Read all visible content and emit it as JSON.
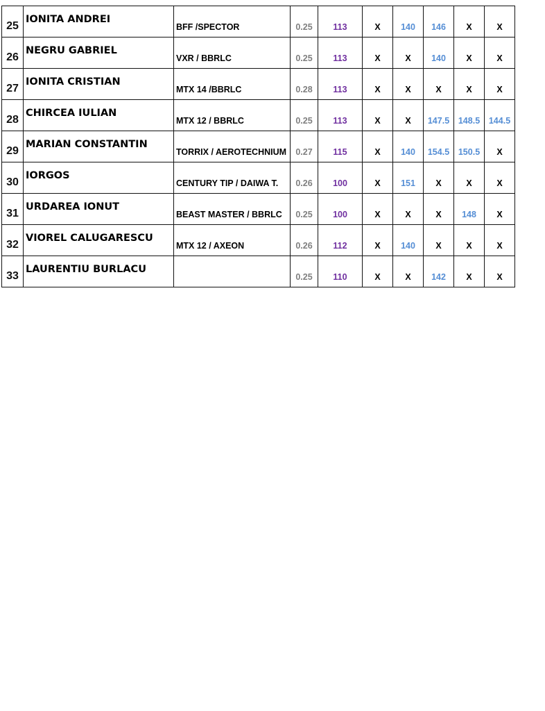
{
  "colors": {
    "line": "#7f7f7f",
    "weight": "#7030a0",
    "distance": "#558ed5",
    "none": "#000000"
  },
  "rows": [
    {
      "no": "25",
      "name": "IONITA ANDREI",
      "gear": "BFF /SPECTOR",
      "line": "0.25",
      "weight": "113",
      "throws": [
        "X",
        "140",
        "146",
        "X",
        "X"
      ]
    },
    {
      "no": "26",
      "name": "NEGRU GABRIEL",
      "gear": "VXR / BBRLC",
      "line": "0.25",
      "weight": "113",
      "throws": [
        "X",
        "X",
        "140",
        "X",
        "X"
      ]
    },
    {
      "no": "27",
      "name": "IONITA CRISTIAN",
      "gear": "MTX 14 /BBRLC",
      "line": "0.28",
      "weight": "113",
      "throws": [
        "X",
        "X",
        "X",
        "X",
        "X"
      ]
    },
    {
      "no": "28",
      "name": "CHIRCEA IULIAN",
      "gear": "MTX 12 / BBRLC",
      "line": "0.25",
      "weight": "113",
      "throws": [
        "X",
        "X",
        "147.5",
        "148.5",
        "144.5"
      ]
    },
    {
      "no": "29",
      "name": "MARIAN CONSTANTIN",
      "gear": "TORRIX / AEROTECHNIUM",
      "line": "0.27",
      "weight": "115",
      "throws": [
        "X",
        "140",
        "154.5",
        "150.5",
        "X"
      ]
    },
    {
      "no": "30",
      "name": "IORGOS",
      "gear": "CENTURY TIP / DAIWA T.",
      "line": "0.26",
      "weight": "100",
      "throws": [
        "X",
        "151",
        "X",
        "X",
        "X"
      ]
    },
    {
      "no": "31",
      "name": "URDAREA IONUT",
      "gear": "BEAST MASTER / BBRLC",
      "line": "0.25",
      "weight": "100",
      "throws": [
        "X",
        "X",
        "X",
        "148",
        "X"
      ]
    },
    {
      "no": "32",
      "name": "VIOREL CALUGARESCU",
      "gear": "MTX 12 / AXEON",
      "line": "0.26",
      "weight": "112",
      "throws": [
        "X",
        "140",
        "X",
        "X",
        "X"
      ]
    },
    {
      "no": "33",
      "name": "LAURENTIU BURLACU",
      "gear": "",
      "line": "0.25",
      "weight": "110",
      "throws": [
        "X",
        "X",
        "142",
        "X",
        "X"
      ]
    }
  ]
}
